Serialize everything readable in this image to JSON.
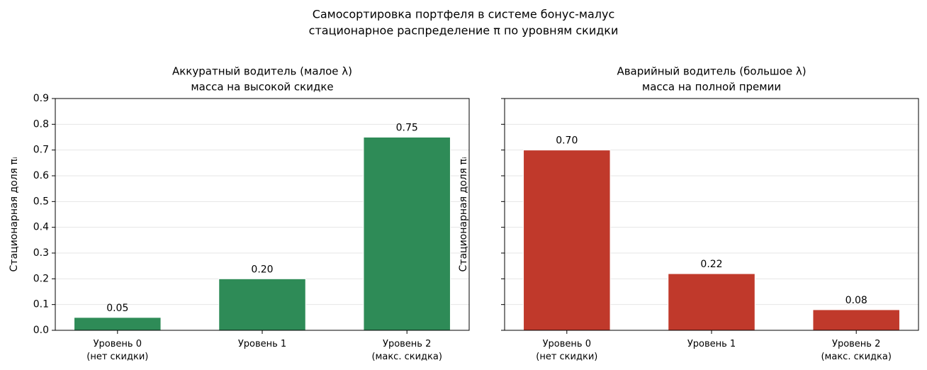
{
  "suptitle": [
    "Самосортировка портфеля в системе бонус-малус",
    "стационарное распределение π по уровням скидки"
  ],
  "chart_data": [
    {
      "type": "bar",
      "title": [
        "Аккуратный водитель (малое λ)",
        "масса на высокой скидке"
      ],
      "ylabel": "Стационарная доля πᵢ",
      "categories": [
        [
          "Уровень 0",
          "(нет скидки)"
        ],
        [
          "Уровень 1"
        ],
        [
          "Уровень 2",
          "(макс. скидка)"
        ]
      ],
      "values": [
        0.05,
        0.2,
        0.75
      ],
      "value_labels": [
        "0.05",
        "0.20",
        "0.75"
      ],
      "color": "#2e8b57",
      "ylim": [
        0,
        0.9
      ],
      "yticks": [
        {
          "value": 0,
          "label": "0.0"
        },
        {
          "value": 0.1,
          "label": "0.1"
        },
        {
          "value": 0.2,
          "label": "0.2"
        },
        {
          "value": 0.3,
          "label": "0.3"
        },
        {
          "value": 0.4,
          "label": "0.4"
        },
        {
          "value": 0.5,
          "label": "0.5"
        },
        {
          "value": 0.6,
          "label": "0.6"
        },
        {
          "value": 0.7,
          "label": "0.7"
        },
        {
          "value": 0.8,
          "label": "0.8"
        },
        {
          "value": 0.9,
          "label": "0.9"
        }
      ],
      "ytick_labels": true,
      "grid": true
    },
    {
      "type": "bar",
      "title": [
        "Аварийный водитель (большое λ)",
        "масса на полной премии"
      ],
      "ylabel": "Стационарная доля πᵢ",
      "categories": [
        [
          "Уровень 0",
          "(нет скидки)"
        ],
        [
          "Уровень 1"
        ],
        [
          "Уровень 2",
          "(макс. скидка)"
        ]
      ],
      "values": [
        0.7,
        0.22,
        0.08
      ],
      "value_labels": [
        "0.70",
        "0.22",
        "0.08"
      ],
      "color": "#c0392b",
      "ylim": [
        0,
        0.9
      ],
      "yticks": [
        0,
        0.1,
        0.2,
        0.3,
        0.4,
        0.5,
        0.6,
        0.7,
        0.8,
        0.9
      ],
      "ytick_labels": false,
      "grid": true
    }
  ]
}
